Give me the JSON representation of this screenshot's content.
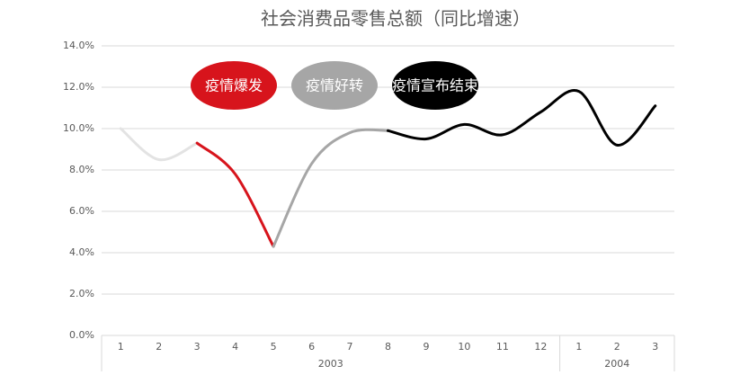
{
  "chart_data": {
    "type": "line",
    "title": "社会消费品零售总额（同比增速）",
    "categories": [
      "1",
      "2",
      "3",
      "4",
      "5",
      "6",
      "7",
      "8",
      "9",
      "10",
      "11",
      "12",
      "1",
      "2",
      "3"
    ],
    "groups": [
      {
        "label": "2003",
        "size": 12
      },
      {
        "label": "2004",
        "size": 3
      }
    ],
    "series": [
      {
        "color": "#e3e3e3",
        "values": [
          10.0,
          8.5,
          9.3,
          null,
          null,
          null,
          null,
          null,
          null,
          null,
          null,
          null,
          null,
          null,
          null
        ]
      },
      {
        "name": "疫情爆发",
        "color": "#d7141c",
        "values": [
          null,
          null,
          9.3,
          7.8,
          4.3,
          null,
          null,
          null,
          null,
          null,
          null,
          null,
          null,
          null,
          null
        ]
      },
      {
        "name": "疫情好转",
        "color": "#a6a6a6",
        "values": [
          null,
          null,
          null,
          null,
          4.3,
          8.3,
          9.8,
          9.9,
          null,
          null,
          null,
          null,
          null,
          null,
          null
        ]
      },
      {
        "name": "疫情宣布结束",
        "color": "#000000",
        "values": [
          null,
          null,
          null,
          null,
          null,
          null,
          null,
          9.9,
          9.5,
          10.2,
          9.7,
          10.8,
          11.8,
          9.2,
          11.1
        ]
      }
    ],
    "ylim": [
      0,
      14
    ],
    "yticks": [
      {
        "value": 0,
        "label": "0.0%"
      },
      {
        "value": 2,
        "label": "2.0%"
      },
      {
        "value": 4,
        "label": "4.0%"
      },
      {
        "value": 6,
        "label": "6.0%"
      },
      {
        "value": 8,
        "label": "8.0%"
      },
      {
        "value": 10,
        "label": "10.0%"
      },
      {
        "value": 12,
        "label": "12.0%"
      },
      {
        "value": 14,
        "label": "14.0%"
      }
    ],
    "grid": true
  }
}
